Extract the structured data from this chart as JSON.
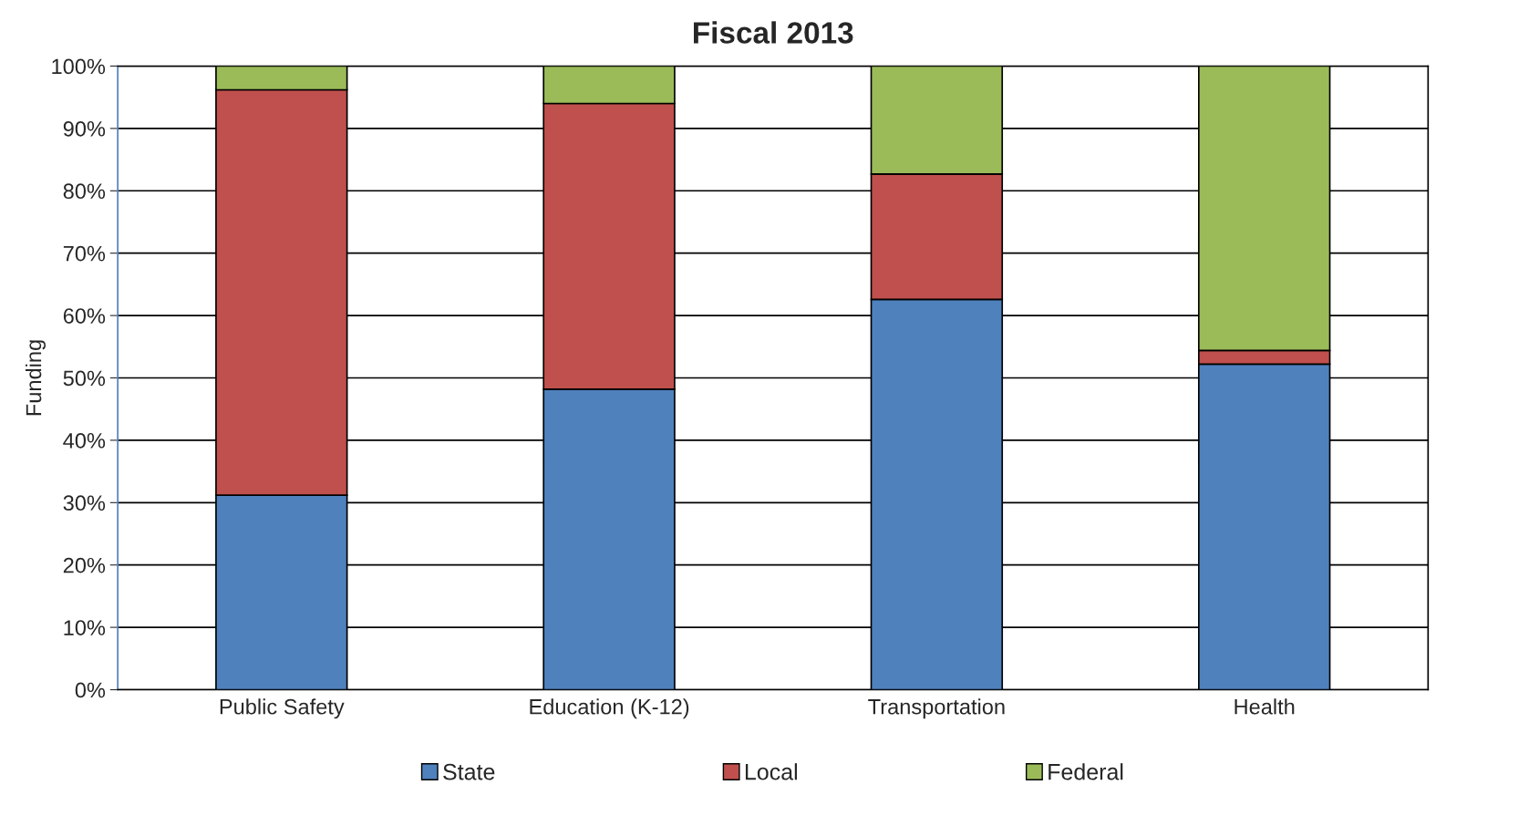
{
  "chart_data": {
    "type": "bar",
    "title": "Fiscal 2013",
    "ylabel": "Funding",
    "stacked": true,
    "categories": [
      "Public Safety",
      "Education (K-12)",
      "Transportation",
      "Health"
    ],
    "series": [
      {
        "name": "State",
        "color": "#4f81bd",
        "values": [
          31.2,
          48.2,
          62.6,
          52.2
        ]
      },
      {
        "name": "Local",
        "color": "#c0504d",
        "values": [
          65.0,
          45.8,
          20.1,
          2.2
        ]
      },
      {
        "name": "Federal",
        "color": "#9bbb59",
        "values": [
          3.8,
          6.0,
          17.3,
          45.6
        ]
      }
    ],
    "ylim": [
      0,
      100
    ],
    "yticks": [
      {
        "value": 0,
        "label": "0%"
      },
      {
        "value": 10,
        "label": "10%"
      },
      {
        "value": 20,
        "label": "20%"
      },
      {
        "value": 30,
        "label": "30%"
      },
      {
        "value": 40,
        "label": "40%"
      },
      {
        "value": 50,
        "label": "50%"
      },
      {
        "value": 60,
        "label": "60%"
      },
      {
        "value": 70,
        "label": "70%"
      },
      {
        "value": 80,
        "label": "80%"
      },
      {
        "value": 90,
        "label": "90%"
      },
      {
        "value": 100,
        "label": "100%"
      }
    ],
    "grid": "y",
    "legend": "bottom"
  }
}
